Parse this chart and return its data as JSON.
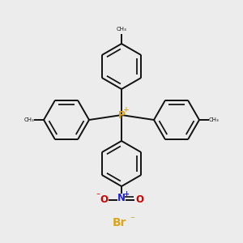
{
  "background_color": "#ececec",
  "p_color": "#daa520",
  "p_label": "P",
  "p_plus": "+",
  "br_color": "#daa520",
  "br_label": "Br",
  "br_minus": "⁻",
  "n_color": "#2222cc",
  "n_label": "N",
  "n_plus": "+",
  "o_color": "#cc0000",
  "o_label": "O",
  "o_minus": "⁻",
  "line_color": "#111111",
  "line_width": 1.4,
  "figsize": [
    3.0,
    3.0
  ],
  "dpi": 100
}
